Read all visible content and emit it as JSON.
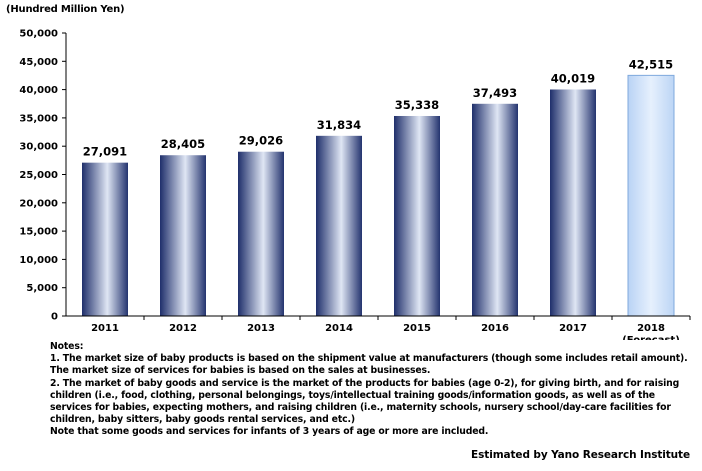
{
  "chart_data": {
    "type": "bar",
    "unit_label": "(Hundred Million Yen)",
    "categories": [
      "2011",
      "2012",
      "2013",
      "2014",
      "2015",
      "2016",
      "2017",
      "2018"
    ],
    "category_sublabels": [
      "",
      "",
      "",
      "",
      "",
      "",
      "",
      "(Forecast)"
    ],
    "values": [
      27091,
      28405,
      29026,
      31834,
      35338,
      37493,
      40019,
      42515
    ],
    "value_labels": [
      "27,091",
      "28,405",
      "29,026",
      "31,834",
      "35,338",
      "37,493",
      "40,019",
      "42,515"
    ],
    "forecast_index": 7,
    "ylim": [
      0,
      50000
    ],
    "yticks": [
      0,
      5000,
      10000,
      15000,
      20000,
      25000,
      30000,
      35000,
      40000,
      45000,
      50000
    ],
    "ytick_labels": [
      "0",
      "5,000",
      "10,000",
      "15,000",
      "20,000",
      "25,000",
      "30,000",
      "35,000",
      "40,000",
      "45,000",
      "50,000"
    ],
    "grid": false,
    "colors": {
      "bar_dark": "#1f2f6b",
      "bar_light": "#dfe6f4",
      "forecast_fill": "#cfe2fb",
      "forecast_edge": "#7fa9dd"
    }
  },
  "notes": [
    "Notes:",
    "1. The market size of baby products is based on the shipment value at manufacturers (though some includes retail amount).",
    "The market size of services for babies is based on the sales at businesses.",
    "2. The market of baby goods and service is the market of the products for babies (age 0-2), for giving birth, and for raising",
    "children (i.e., food, clothing, personal belongings, toys/intellectual training goods/information goods, as well as of the",
    "services for babies, expecting mothers, and raising children (i.e., maternity schools, nursery school/day-care facilities for",
    "children, baby sitters, baby goods rental services, and etc.)",
    "Note that some goods and services for infants of 3 years of age or more are included."
  ],
  "credit": "Estimated by Yano Research Institute"
}
